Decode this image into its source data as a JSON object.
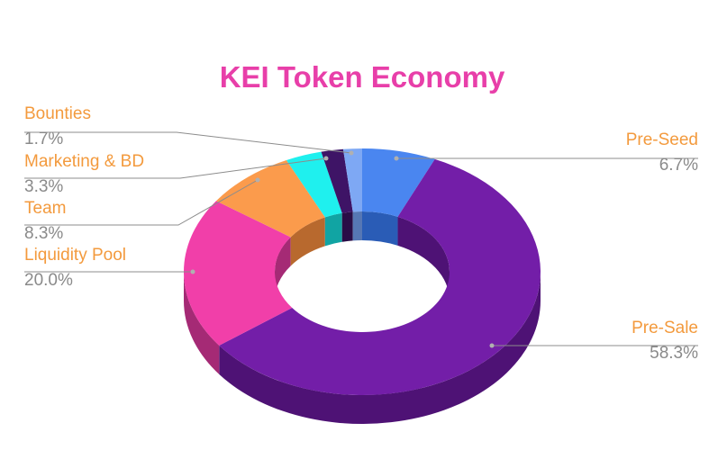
{
  "chart_data": {
    "type": "pie",
    "style": "3d-donut",
    "title": "KEI Token Economy",
    "title_color": "#e83fa9",
    "label_color": "#f39a3d",
    "value_color": "#8a8a8a",
    "slices": [
      {
        "label": "Pre-Seed",
        "value": 6.7,
        "display": "6.7%",
        "color": "#4a86f0",
        "side_color": "#2a5cb6"
      },
      {
        "label": "Pre-Sale",
        "value": 58.3,
        "display": "58.3%",
        "color": "#731ea8",
        "side_color": "#4e1275"
      },
      {
        "label": "Liquidity Pool",
        "value": 20.0,
        "display": "20.0%",
        "color": "#f13fa9",
        "side_color": "#a52a75"
      },
      {
        "label": "Team",
        "value": 8.3,
        "display": "8.3%",
        "color": "#fb9b4c",
        "side_color": "#b8692e"
      },
      {
        "label": "Marketing & BD",
        "value": 3.3,
        "display": "3.3%",
        "color": "#1ff0ee",
        "side_color": "#11a4a3"
      },
      {
        "label": "",
        "value": 2.0,
        "display": "",
        "color": "#3e1466",
        "side_color": "#2a0d47"
      },
      {
        "label": "Bounties",
        "value": 1.7,
        "display": "1.7%",
        "color": "#7ea8f4",
        "side_color": "#5677b4"
      }
    ]
  }
}
